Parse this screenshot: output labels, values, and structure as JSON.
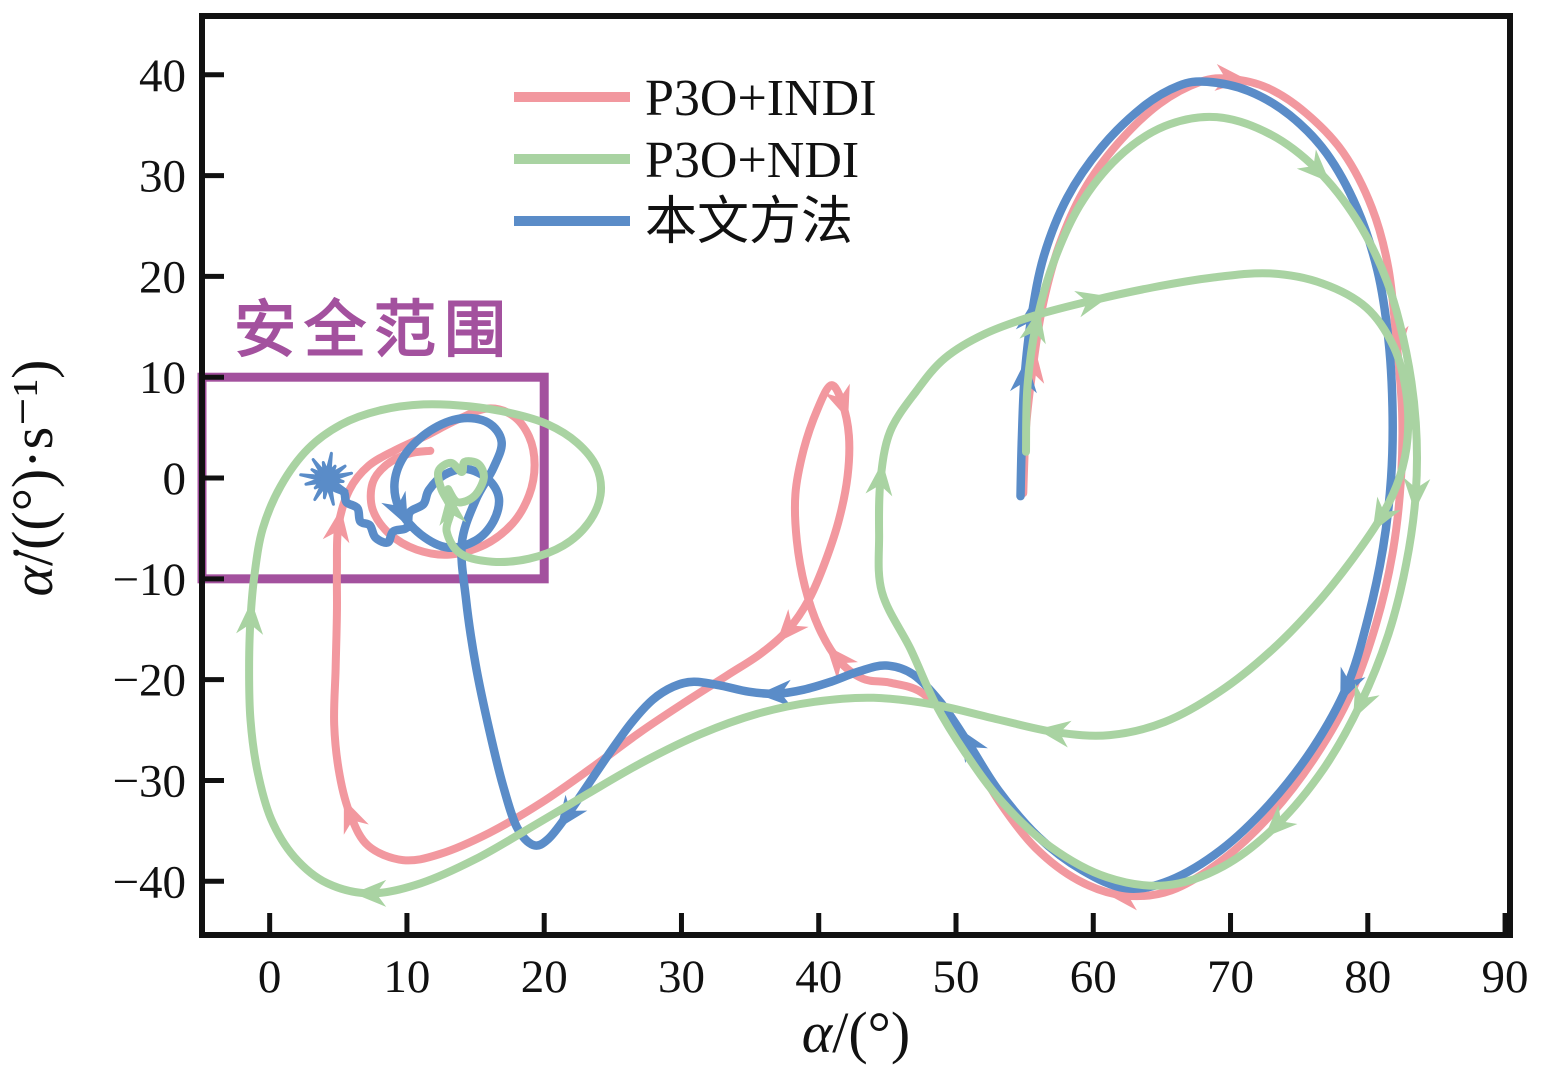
{
  "figure": {
    "background": "#ffffff"
  },
  "chart_data": {
    "type": "line",
    "title": "",
    "xlabel": {
      "var": "α",
      "rest": "/(°)"
    },
    "ylabel": {
      "var": "α̇",
      "rest": "/((°)·s⁻¹)"
    },
    "xlim": [
      -4.93,
      90.36
    ],
    "ylim": [
      -45.33,
      45.83
    ],
    "x_ticks": [
      0,
      10,
      20,
      30,
      40,
      50,
      60,
      70,
      80,
      90
    ],
    "x_tick_labels": [
      "0",
      "10",
      "20",
      "30",
      "40",
      "50",
      "60",
      "70",
      "80",
      "90"
    ],
    "y_ticks": [
      -40,
      -30,
      -20,
      -10,
      0,
      10,
      20,
      30,
      40
    ],
    "y_tick_labels": [
      "−40",
      "−30",
      "−20",
      "−10",
      "0",
      "10",
      "20",
      "30",
      "40"
    ],
    "grid": false,
    "axis_color": "#111111",
    "legend": {
      "position": "upper-left-inside",
      "items": [
        {
          "id": "p3o-indi",
          "label": "P3O+INDI",
          "color": "#F2989F"
        },
        {
          "id": "p3o-ndi",
          "label": "P3O+NDI",
          "color": "#A9D3A2"
        },
        {
          "id": "benwen-method",
          "label": "本文方法",
          "color": "#5A8CC8"
        }
      ]
    },
    "safe_region": {
      "label": "安全范围",
      "color": "#A3519E",
      "x0": -4.93,
      "x1": 20,
      "y0": -10,
      "y1": 10,
      "label_x": -2.6,
      "label_y": 12.6
    },
    "end_marker": {
      "series": "benwen-method",
      "x": 4.2,
      "y": -0.1,
      "color": "#5A8CC8"
    },
    "series": [
      {
        "id": "p3o-indi",
        "name": "P3O+INDI",
        "color": "#F2989F",
        "width": 8,
        "arrows": [
          2,
          9,
          15,
          25,
          34,
          42,
          48,
          59,
          65
        ],
        "points": [
          [
            54.9,
            -1.5
          ],
          [
            55.1,
            5
          ],
          [
            55.6,
            11
          ],
          [
            56.3,
            17
          ],
          [
            57.5,
            23
          ],
          [
            59.3,
            28.5
          ],
          [
            61.8,
            33.2
          ],
          [
            64.8,
            37.1
          ],
          [
            67.8,
            39.3
          ],
          [
            70,
            39.6
          ],
          [
            72.7,
            38.7
          ],
          [
            75.5,
            36.2
          ],
          [
            78.2,
            32.3
          ],
          [
            80.3,
            26.8
          ],
          [
            81.5,
            20.8
          ],
          [
            82.1,
            13.5
          ],
          [
            82.5,
            6.5
          ],
          [
            82.4,
            -0.5
          ],
          [
            81.8,
            -7.5
          ],
          [
            80.6,
            -14.5
          ],
          [
            78.8,
            -21.3
          ],
          [
            76.2,
            -27.6
          ],
          [
            73,
            -33.3
          ],
          [
            69.4,
            -37.9
          ],
          [
            65.7,
            -40.9
          ],
          [
            62.2,
            -41.4
          ],
          [
            58.9,
            -39.9
          ],
          [
            55.8,
            -36.7
          ],
          [
            53.2,
            -32.2
          ],
          [
            51.2,
            -27.6
          ],
          [
            49.4,
            -23.8
          ],
          [
            47.4,
            -21.2
          ],
          [
            45.2,
            -20.3
          ],
          [
            43.2,
            -19.9
          ],
          [
            41.4,
            -18
          ],
          [
            40,
            -14.8
          ],
          [
            39,
            -10.8
          ],
          [
            38.4,
            -6.2
          ],
          [
            38.3,
            -1.6
          ],
          [
            38.9,
            2.8
          ],
          [
            39.9,
            6.8
          ],
          [
            40.9,
            9.2
          ],
          [
            41.7,
            7.5
          ],
          [
            42.2,
            4.2
          ],
          [
            42.1,
            0.2
          ],
          [
            41.5,
            -4
          ],
          [
            40.5,
            -8.2
          ],
          [
            39.3,
            -12
          ],
          [
            37.8,
            -15
          ],
          [
            35.8,
            -17.4
          ],
          [
            33.3,
            -19.6
          ],
          [
            30.3,
            -22.2
          ],
          [
            27,
            -25.2
          ],
          [
            23.5,
            -28.7
          ],
          [
            19.8,
            -32.2
          ],
          [
            16,
            -35.2
          ],
          [
            12.4,
            -37.3
          ],
          [
            9.7,
            -37.9
          ],
          [
            7.2,
            -36.5
          ],
          [
            5.9,
            -33.5
          ],
          [
            5.1,
            -29.5
          ],
          [
            4.7,
            -24.5
          ],
          [
            4.8,
            -19
          ],
          [
            4.9,
            -13.5
          ],
          [
            4.9,
            -9.2
          ],
          [
            5.0,
            -4.8
          ],
          [
            5.8,
            -1.2
          ],
          [
            7.2,
            1.2
          ],
          [
            9.2,
            2.8
          ],
          [
            11.4,
            4.2
          ],
          [
            13.7,
            5.8
          ],
          [
            15.9,
            6.9
          ],
          [
            17.7,
            6.2
          ],
          [
            18.9,
            4.1
          ],
          [
            19.3,
            1.3
          ],
          [
            18.9,
            -1.7
          ],
          [
            17.7,
            -4.5
          ],
          [
            15.7,
            -6.6
          ],
          [
            13.1,
            -7.6
          ],
          [
            10.7,
            -7.1
          ],
          [
            8.7,
            -5.5
          ],
          [
            7.5,
            -3.1
          ],
          [
            7.5,
            -0.5
          ],
          [
            8.5,
            1.3
          ],
          [
            10.1,
            2.4
          ],
          [
            11.7,
            2.7
          ]
        ]
      },
      {
        "id": "benwen-method",
        "name": "本文方法",
        "color": "#5A8CC8",
        "width": 8.5,
        "arrows": [
          2,
          3,
          20,
          29,
          36,
          45,
          62
        ],
        "points": [
          [
            54.7,
            -1.8
          ],
          [
            54.8,
            4
          ],
          [
            55.0,
            10
          ],
          [
            55.5,
            16
          ],
          [
            56.4,
            22
          ],
          [
            58.1,
            27.8
          ],
          [
            60.6,
            32.8
          ],
          [
            63.6,
            36.8
          ],
          [
            66.2,
            38.9
          ],
          [
            68.3,
            39.3
          ],
          [
            71.3,
            38.4
          ],
          [
            74.3,
            36
          ],
          [
            77,
            32.2
          ],
          [
            79.2,
            26.8
          ],
          [
            80.7,
            20.6
          ],
          [
            81.5,
            13.8
          ],
          [
            81.8,
            7
          ],
          [
            81.7,
            0
          ],
          [
            81.1,
            -7
          ],
          [
            80,
            -14
          ],
          [
            78.5,
            -20.6
          ],
          [
            76,
            -26.8
          ],
          [
            72.8,
            -32.4
          ],
          [
            69.3,
            -36.9
          ],
          [
            65.6,
            -39.9
          ],
          [
            62.4,
            -40.7
          ],
          [
            59.2,
            -38.9
          ],
          [
            56,
            -35.6
          ],
          [
            53.1,
            -31
          ],
          [
            50.9,
            -26.3
          ],
          [
            48.9,
            -22.3
          ],
          [
            46.9,
            -19.5
          ],
          [
            44.9,
            -18.6
          ],
          [
            42.9,
            -19.2
          ],
          [
            40.9,
            -20.2
          ],
          [
            38.9,
            -21
          ],
          [
            36.9,
            -21.4
          ],
          [
            34.9,
            -21.2
          ],
          [
            32.9,
            -20.6
          ],
          [
            30.9,
            -20.2
          ],
          [
            29.4,
            -20.7
          ],
          [
            27.9,
            -22
          ],
          [
            26.4,
            -24.2
          ],
          [
            24.9,
            -27
          ],
          [
            23.3,
            -30.2
          ],
          [
            21.7,
            -33.4
          ],
          [
            20.3,
            -35.8
          ],
          [
            19.2,
            -36.4
          ],
          [
            18,
            -34.6
          ],
          [
            17,
            -30.5
          ],
          [
            16,
            -25
          ],
          [
            15,
            -18.5
          ],
          [
            14.3,
            -12
          ],
          [
            14,
            -6.5
          ],
          [
            15,
            -2.2
          ],
          [
            16.3,
            1
          ],
          [
            16.9,
            3.6
          ],
          [
            15.9,
            5.5
          ],
          [
            13.9,
            5.9
          ],
          [
            11.7,
            4.7
          ],
          [
            9.9,
            2.4
          ],
          [
            9.1,
            -0.4
          ],
          [
            9.5,
            -3.2
          ],
          [
            11,
            -5.6
          ],
          [
            13,
            -6.9
          ],
          [
            15,
            -6.2
          ],
          [
            16.3,
            -4.3
          ],
          [
            16.7,
            -2
          ],
          [
            15.9,
            -0.1
          ],
          [
            14.3,
            0.9
          ],
          [
            12.7,
            0.3
          ],
          [
            11.6,
            -1.2
          ],
          [
            11.2,
            -2.6
          ],
          [
            10.2,
            -3.4
          ],
          [
            10.0,
            -4.9
          ],
          [
            9.0,
            -5.3
          ],
          [
            8.6,
            -6.4
          ],
          [
            7.7,
            -5.9
          ],
          [
            7.3,
            -4.7
          ],
          [
            6.6,
            -4.3
          ],
          [
            6.4,
            -3.0
          ],
          [
            5.6,
            -2.4
          ],
          [
            5.4,
            -1.4
          ],
          [
            4.7,
            -0.9
          ],
          [
            4.5,
            -0.2
          ],
          [
            4.2,
            -0.1
          ]
        ]
      },
      {
        "id": "p3o-ndi",
        "name": "P3O+NDI",
        "color": "#A9D3A2",
        "width": 8,
        "arrows": [
          2,
          9,
          14,
          17,
          19,
          30,
          36,
          46,
          53,
          65,
          72,
          92
        ],
        "points": [
          [
            55.1,
            2.6
          ],
          [
            55.2,
            9
          ],
          [
            55.8,
            15
          ],
          [
            57,
            21
          ],
          [
            59,
            27
          ],
          [
            61.8,
            31.8
          ],
          [
            65.2,
            34.9
          ],
          [
            69,
            35.8
          ],
          [
            72.9,
            34.1
          ],
          [
            76.3,
            30.6
          ],
          [
            79.2,
            25.6
          ],
          [
            81.4,
            19.5
          ],
          [
            82.8,
            12.5
          ],
          [
            83.5,
            5.5
          ],
          [
            83.5,
            -1.5
          ],
          [
            82.8,
            -8.5
          ],
          [
            81.5,
            -15.5
          ],
          [
            79.5,
            -22.3
          ],
          [
            76.8,
            -28.8
          ],
          [
            73.4,
            -34.4
          ],
          [
            69.5,
            -38.5
          ],
          [
            65.3,
            -40.4
          ],
          [
            61,
            -39.6
          ],
          [
            56.9,
            -36.6
          ],
          [
            53.4,
            -32.2
          ],
          [
            50.7,
            -27.3
          ],
          [
            48.5,
            -22.4
          ],
          [
            46.7,
            -17
          ],
          [
            44.6,
            -11.3
          ],
          [
            44.4,
            -5.5
          ],
          [
            44.5,
            -0.2
          ],
          [
            45.2,
            4.6
          ],
          [
            47.1,
            8.6
          ],
          [
            49.2,
            11.9
          ],
          [
            52.1,
            14.3
          ],
          [
            55.7,
            16.1
          ],
          [
            59.9,
            17.6
          ],
          [
            64.3,
            18.9
          ],
          [
            68.8,
            19.9
          ],
          [
            72.9,
            20.3
          ],
          [
            76.7,
            19.3
          ],
          [
            79.9,
            16.9
          ],
          [
            81.9,
            13
          ],
          [
            82.8,
            8.5
          ],
          [
            82.9,
            4
          ],
          [
            82.3,
            0
          ],
          [
            81,
            -3.8
          ],
          [
            78.9,
            -8
          ],
          [
            76.2,
            -12.6
          ],
          [
            72.9,
            -17.2
          ],
          [
            69.2,
            -21.2
          ],
          [
            65.2,
            -24.2
          ],
          [
            61.2,
            -25.5
          ],
          [
            57.2,
            -25.2
          ],
          [
            52.9,
            -23.9
          ],
          [
            48.5,
            -22.5
          ],
          [
            44,
            -21.8
          ],
          [
            39.7,
            -22.2
          ],
          [
            35.5,
            -23.4
          ],
          [
            31.4,
            -25.4
          ],
          [
            27.3,
            -28.1
          ],
          [
            23.2,
            -31.3
          ],
          [
            19.1,
            -34.6
          ],
          [
            15,
            -37.8
          ],
          [
            11,
            -40.2
          ],
          [
            7.4,
            -41.2
          ],
          [
            4.2,
            -40.2
          ],
          [
            1.8,
            -37.6
          ],
          [
            0.1,
            -33.8
          ],
          [
            -0.9,
            -29
          ],
          [
            -1.4,
            -24
          ],
          [
            -1.5,
            -19
          ],
          [
            -1.4,
            -14
          ],
          [
            -1.1,
            -9.5
          ],
          [
            -0.5,
            -5
          ],
          [
            0.8,
            -0.8
          ],
          [
            2.8,
            2.9
          ],
          [
            5.2,
            5.3
          ],
          [
            8,
            6.7
          ],
          [
            11.2,
            7.3
          ],
          [
            14.6,
            7.1
          ],
          [
            17.7,
            6.4
          ],
          [
            20.3,
            5.3
          ],
          [
            22.4,
            3.5
          ],
          [
            23.8,
            1.1
          ],
          [
            24.1,
            -1.7
          ],
          [
            23.2,
            -4.5
          ],
          [
            21.4,
            -6.7
          ],
          [
            18.9,
            -8
          ],
          [
            16.2,
            -8.3
          ],
          [
            13.9,
            -7.5
          ],
          [
            12.9,
            -5.3
          ],
          [
            13.2,
            -3.1
          ],
          [
            12.5,
            -1.1
          ],
          [
            12.3,
            0.7
          ],
          [
            13.2,
            1.5
          ],
          [
            14,
            0.6
          ],
          [
            14.2,
            1.6
          ],
          [
            15.2,
            1.4
          ],
          [
            15.6,
            0
          ],
          [
            14.9,
            -1.8
          ],
          [
            13.7,
            -2.4
          ],
          [
            13,
            -1.1
          ]
        ]
      }
    ]
  }
}
